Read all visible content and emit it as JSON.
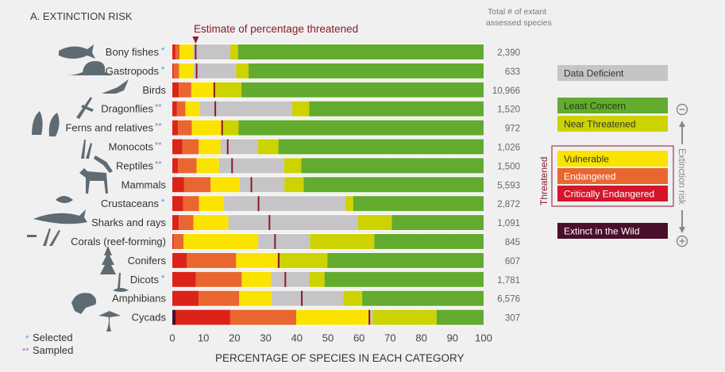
{
  "chart_data": {
    "type": "bar",
    "orientation": "horizontal",
    "stacked": true,
    "title": "A. EXTINCTION RISK",
    "annotation": "Estimate of percentage threatened",
    "xlabel": "PERCENTAGE OF SPECIES IN EACH CATEGORY",
    "ylabel": "",
    "xlim": [
      0,
      100
    ],
    "xticks": [
      0,
      10,
      20,
      30,
      40,
      50,
      60,
      70,
      80,
      90,
      100
    ],
    "count_header": "Total # of extant assessed species",
    "categories": [
      "Bony fishes",
      "Gastropods",
      "Birds",
      "Dragonflies",
      "Ferns and relatives",
      "Monocots",
      "Reptiles",
      "Mammals",
      "Crustaceans",
      "Sharks and rays",
      "Corals (reef-forming)",
      "Conifers",
      "Dicots",
      "Amphibians",
      "Cycads"
    ],
    "markers": [
      "*",
      "*",
      "",
      "**",
      "**",
      "**",
      "**",
      "",
      "*",
      "",
      "",
      "",
      "*",
      "",
      ""
    ],
    "counts": [
      "2,390",
      "633",
      "10,966",
      "1,520",
      "972",
      "1,026",
      "1,500",
      "5,593",
      "2,872",
      "1,091",
      "845",
      "607",
      "1,781",
      "6,576",
      "307"
    ],
    "series": [
      {
        "name": "Extinct in the Wild",
        "color": "#4a0f2a",
        "values": [
          0,
          0,
          0,
          0,
          0,
          0,
          0,
          0,
          0,
          0,
          0,
          0,
          0,
          0,
          1.2
        ]
      },
      {
        "name": "Critically Endangered",
        "color": "#dc2319",
        "values": [
          1.0,
          0.4,
          2.1,
          1.5,
          1.8,
          3.2,
          1.8,
          3.8,
          3.5,
          2.1,
          0.4,
          4.7,
          7.6,
          8.5,
          17.4
        ]
      },
      {
        "name": "Endangered",
        "color": "#ea6630",
        "values": [
          1.3,
          1.8,
          4.0,
          2.7,
          4.5,
          5.3,
          6.0,
          8.5,
          5.1,
          4.7,
          3.2,
          15.8,
          14.7,
          13.0,
          21.2
        ]
      },
      {
        "name": "Vulnerable",
        "color": "#fbe300",
        "values": [
          4.3,
          4.5,
          7.0,
          4.7,
          9.4,
          7.0,
          7.2,
          9.4,
          8.0,
          11.2,
          24.0,
          13.1,
          9.4,
          10.4,
          23.3
        ]
      },
      {
        "name": "Data Deficient",
        "color": "#c6c4c7",
        "values": [
          12.0,
          13.8,
          0,
          29.6,
          0,
          12.0,
          20.9,
          14.3,
          39.0,
          41.6,
          16.6,
          0,
          12.3,
          23.0,
          1.2
        ]
      },
      {
        "name": "Near Threatened",
        "color": "#cdd300",
        "values": [
          2.5,
          4.0,
          9.1,
          5.5,
          5.6,
          6.6,
          5.5,
          6.2,
          2.5,
          10.9,
          20.7,
          16.2,
          4.9,
          6.1,
          20.6
        ]
      },
      {
        "name": "Least Concern",
        "color": "#62ab2e",
        "values": [
          78.9,
          75.5,
          77.8,
          56.0,
          78.7,
          65.9,
          58.6,
          57.8,
          41.9,
          29.5,
          35.1,
          50.2,
          51.1,
          39.0,
          15.1
        ]
      }
    ],
    "threatened_estimate": [
      7.5,
      7.8,
      13.5,
      13.8,
      16.0,
      17.8,
      19.2,
      25.4,
      27.7,
      31.2,
      33.0,
      34.2,
      36.3,
      41.6,
      63.3
    ],
    "legend": {
      "items": [
        {
          "label": "Data Deficient",
          "color": "#c6c4c7",
          "text_color": "#333333"
        },
        {
          "label": "Least Concern",
          "color": "#62ab2e",
          "text_color": "#1f3a10"
        },
        {
          "label": "Near Threatened",
          "color": "#cdd300",
          "text_color": "#333333"
        },
        {
          "label": "Vulnerable",
          "color": "#fbe300",
          "text_color": "#333333"
        },
        {
          "label": "Endangered",
          "color": "#ea6630",
          "text_color": "#ffffff"
        },
        {
          "label": "Critically Endangered",
          "color": "#d5152a",
          "text_color": "#ffffff"
        },
        {
          "label": "Extinct in the Wild",
          "color": "#4a0f2a",
          "text_color": "#ffffff"
        }
      ],
      "threatened_group_label": "Threatened",
      "risk_axis_label": "Extinction risk",
      "risk_low_symbol": "−",
      "risk_high_symbol": "+",
      "placement": "right"
    },
    "notes": [
      {
        "marker": "*",
        "label": "Selected"
      },
      {
        "marker": "**",
        "label": "Sampled"
      }
    ]
  },
  "colors": {
    "accent": "#8b1a2b",
    "selected_star": "#3aa0d0",
    "sampled_star": "#8c7cc9"
  }
}
